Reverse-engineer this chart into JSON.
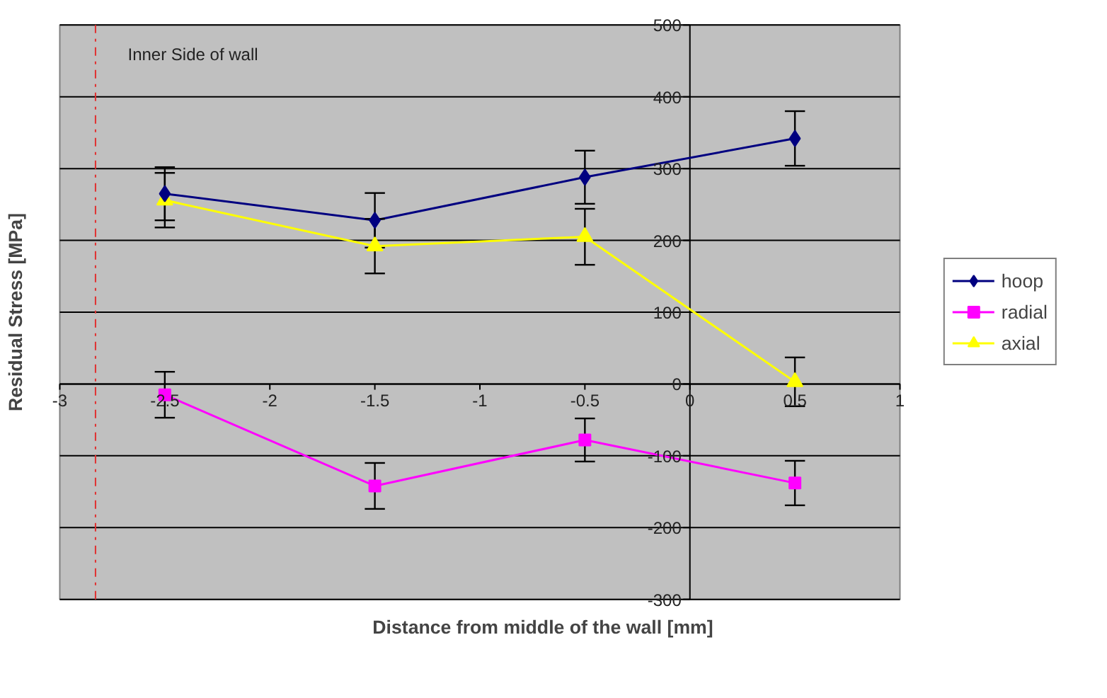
{
  "chart_data": {
    "type": "line",
    "xlabel": "Distance from middle of the wall [mm]",
    "ylabel": "Residual Stress [MPa]",
    "x": [
      -2.5,
      -1.5,
      -0.5,
      0.5
    ],
    "series": [
      {
        "name": "hoop",
        "color": "#000080",
        "marker": "diamond",
        "values": [
          265,
          228,
          288,
          342
        ],
        "errors": [
          37,
          38,
          37,
          38
        ]
      },
      {
        "name": "radial",
        "color": "#ff00ff",
        "marker": "square",
        "values": [
          -15,
          -142,
          -78,
          -138
        ],
        "errors": [
          32,
          32,
          30,
          31
        ]
      },
      {
        "name": "axial",
        "color": "#ffff00",
        "marker": "triangle",
        "values": [
          256,
          192,
          205,
          3
        ],
        "errors": [
          38,
          38,
          39,
          34
        ]
      }
    ],
    "xlim": [
      -3,
      1
    ],
    "xticks": [
      -3,
      -2.5,
      -2,
      -1.5,
      -1,
      -0.5,
      0,
      0.5,
      1
    ],
    "ylim": [
      -300,
      500
    ],
    "yticks": [
      -300,
      -200,
      -100,
      0,
      100,
      200,
      300,
      400,
      500
    ],
    "grid": "y",
    "legend": "right",
    "line_style": "solid",
    "ref_lines": [
      {
        "axis": "x",
        "value": -2.83,
        "color": "#e03030",
        "line_style": "dashdot"
      }
    ],
    "annotations": [
      "Inner Side of wall"
    ]
  }
}
